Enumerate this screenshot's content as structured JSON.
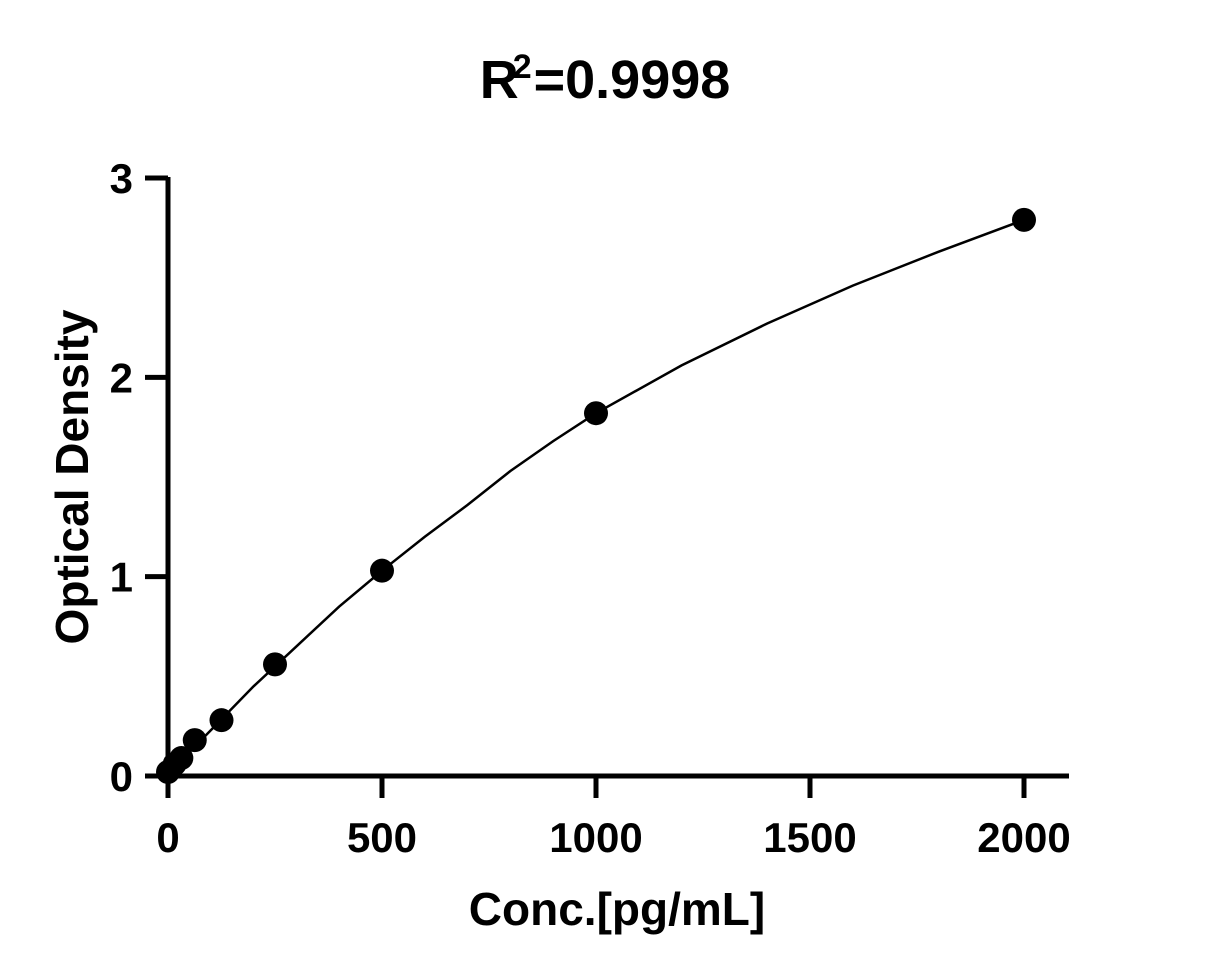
{
  "chart_data": {
    "type": "scatter",
    "title": {
      "base": "R",
      "superscript": "2",
      "rest": "=0.9998"
    },
    "xlabel": "Conc.[pg/mL]",
    "ylabel": "Optical Density",
    "xlim": [
      0,
      2000
    ],
    "ylim": [
      0,
      3
    ],
    "xticks": [
      "0",
      "500",
      "1000",
      "1500",
      "2000"
    ],
    "yticks": [
      "0",
      "1",
      "2",
      "3"
    ],
    "grid": false,
    "legend": "none",
    "marker_color": "#000000",
    "points": [
      {
        "x": 0,
        "y": 0.02
      },
      {
        "x": 15.6,
        "y": 0.06
      },
      {
        "x": 31.2,
        "y": 0.09
      },
      {
        "x": 62.5,
        "y": 0.18
      },
      {
        "x": 125,
        "y": 0.28
      },
      {
        "x": 250,
        "y": 0.56
      },
      {
        "x": 500,
        "y": 1.03
      },
      {
        "x": 1000,
        "y": 1.82
      },
      {
        "x": 2000,
        "y": 2.79
      }
    ],
    "fit": {
      "type": "curve",
      "x": [
        0,
        100,
        200,
        300,
        400,
        500,
        600,
        700,
        800,
        900,
        1000,
        1200,
        1400,
        1600,
        1800,
        2000
      ],
      "y": [
        0.01,
        0.23,
        0.45,
        0.65,
        0.85,
        1.03,
        1.2,
        1.36,
        1.53,
        1.68,
        1.82,
        2.06,
        2.27,
        2.46,
        2.63,
        2.79
      ]
    }
  }
}
